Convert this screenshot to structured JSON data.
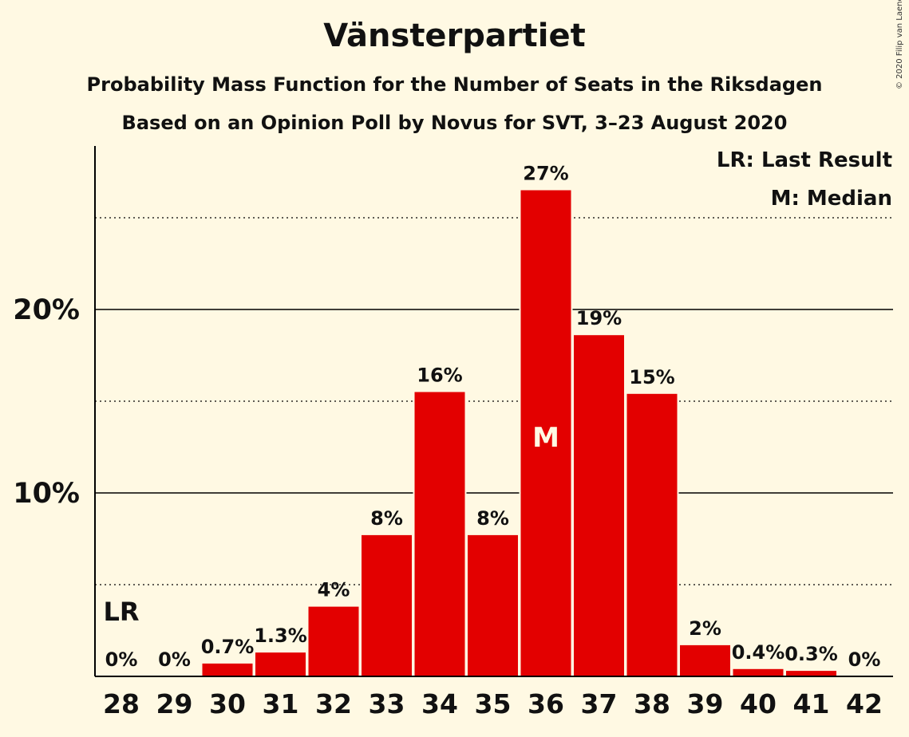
{
  "title": "Vänsterpartiet",
  "subtitle_1": "Probability Mass Function for the Number of Seats in the Riksdagen",
  "subtitle_2": "Based on an Opinion Poll by Novus for SVT, 3–23 August 2020",
  "copyright": "© 2020 Filip van Laenen",
  "legend": {
    "last_result": "LR: Last Result",
    "median": "M: Median"
  },
  "colors": {
    "bar": "#E30000",
    "background": "#FFF9E3"
  },
  "chart_data": {
    "type": "bar",
    "categories": [
      "28",
      "29",
      "30",
      "31",
      "32",
      "33",
      "34",
      "35",
      "36",
      "37",
      "38",
      "39",
      "40",
      "41",
      "42"
    ],
    "values": [
      0,
      0,
      0.7,
      1.3,
      3.8,
      7.7,
      15.5,
      7.7,
      26.5,
      18.6,
      15.4,
      1.7,
      0.4,
      0.3,
      0
    ],
    "value_labels": [
      "0%",
      "0%",
      "0.7%",
      "1.3%",
      "4%",
      "8%",
      "16%",
      "8%",
      "27%",
      "19%",
      "15%",
      "2%",
      "0.4%",
      "0.3%",
      "0%"
    ],
    "y_ticks": [
      {
        "value": 10,
        "label": "10%"
      },
      {
        "value": 20,
        "label": "20%"
      }
    ],
    "ylim": [
      0,
      28.8
    ],
    "last_result_category": "28",
    "last_result_marker": "LR",
    "median_category": "36",
    "median_marker": "M",
    "grid": "solid at labelled ticks, dotted at 5% steps"
  }
}
